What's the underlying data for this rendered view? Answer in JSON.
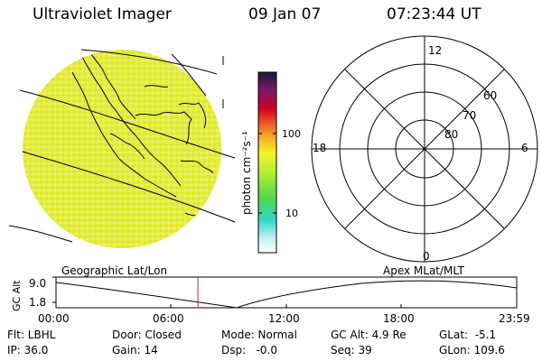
{
  "header": {
    "title": "Ultraviolet Imager",
    "date": "09 Jan 07",
    "time": "07:23:44 UT"
  },
  "colorbar": {
    "unit_label": "photon cm⁻²s⁻¹",
    "ticks": [
      "100",
      "10"
    ]
  },
  "polar_plot": {
    "mlt_labels": {
      "top": "12",
      "left": "18",
      "right": "6",
      "bottom": "0"
    },
    "lat_labels": [
      "60",
      "70",
      "80"
    ]
  },
  "orbit_plot": {
    "left_title": "Geographic Lat/Lon",
    "right_title": "Apex MLat/MLT",
    "ylabel": "GC Alt",
    "y_ticks": [
      "9.0",
      "1.8"
    ],
    "x_ticks": [
      "00:00",
      "06:00",
      "12:00",
      "18:00",
      "23:59"
    ],
    "current_time_fraction": 0.308,
    "colors": {
      "current_time_marker": "#cc2222"
    }
  },
  "status": {
    "filter": "Flt: LBHL",
    "ip": "IP: 36.0",
    "door": "Door: Closed",
    "gain": "Gain: 14",
    "mode": "Mode: Normal",
    "dsp": "Dsp:   -0.0",
    "gc_alt": "GC Alt: 4.9 Re",
    "seq": "Seq: 39",
    "glat": "GLat:  -5.1",
    "glon": "GLon: 109.6"
  },
  "colors": {
    "image_fill": "#e6ef3c",
    "image_fill_light": "#f2f07a"
  }
}
